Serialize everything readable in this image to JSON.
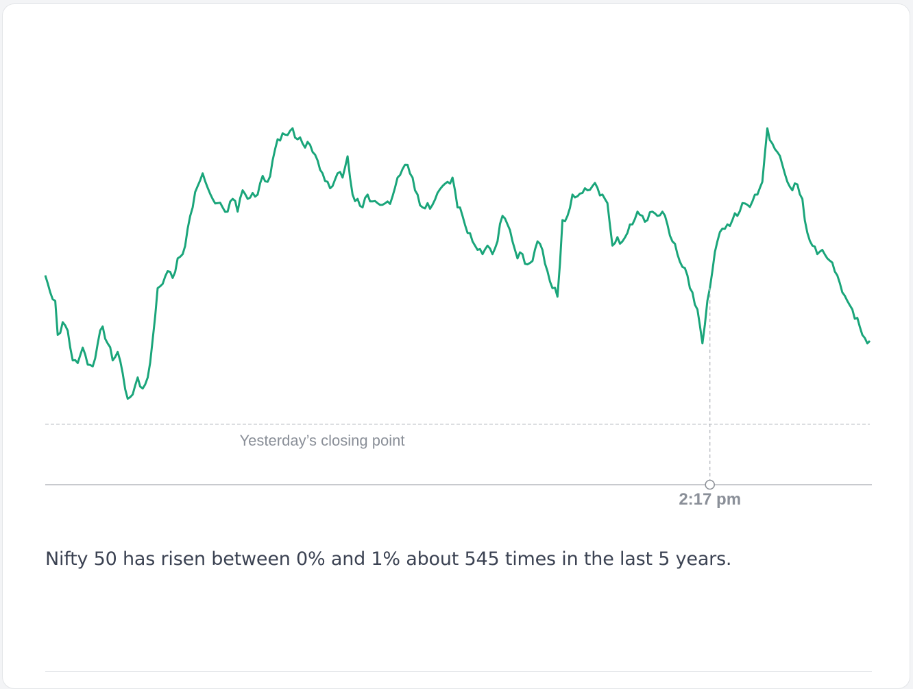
{
  "chart_data": {
    "type": "line",
    "title": "",
    "xlabel": "",
    "ylabel": "",
    "grid": false,
    "color": "#1aa57a",
    "reference_label": "Yesterday’s closing point",
    "reference_value": 0,
    "ylim": [
      -0.3,
      3.65
    ],
    "x_count": 331,
    "keypoints": [
      [
        0,
        1.75
      ],
      [
        2,
        1.55
      ],
      [
        4,
        1.45
      ],
      [
        5,
        1.05
      ],
      [
        7,
        1.2
      ],
      [
        9,
        1.1
      ],
      [
        11,
        0.75
      ],
      [
        13,
        0.72
      ],
      [
        15,
        0.9
      ],
      [
        17,
        0.7
      ],
      [
        19,
        0.68
      ],
      [
        21,
        0.95
      ],
      [
        23,
        1.15
      ],
      [
        25,
        0.95
      ],
      [
        27,
        0.75
      ],
      [
        29,
        0.85
      ],
      [
        31,
        0.6
      ],
      [
        33,
        0.3
      ],
      [
        35,
        0.35
      ],
      [
        37,
        0.55
      ],
      [
        39,
        0.42
      ],
      [
        41,
        0.55
      ],
      [
        43,
        1.0
      ],
      [
        45,
        1.6
      ],
      [
        47,
        1.65
      ],
      [
        49,
        1.8
      ],
      [
        51,
        1.72
      ],
      [
        53,
        1.95
      ],
      [
        55,
        2.0
      ],
      [
        57,
        2.3
      ],
      [
        59,
        2.55
      ],
      [
        61,
        2.8
      ],
      [
        63,
        2.95
      ],
      [
        65,
        2.78
      ],
      [
        67,
        2.65
      ],
      [
        69,
        2.6
      ],
      [
        71,
        2.55
      ],
      [
        73,
        2.5
      ],
      [
        75,
        2.65
      ],
      [
        77,
        2.5
      ],
      [
        79,
        2.75
      ],
      [
        81,
        2.65
      ],
      [
        83,
        2.72
      ],
      [
        85,
        2.7
      ],
      [
        87,
        2.92
      ],
      [
        89,
        2.85
      ],
      [
        91,
        3.1
      ],
      [
        93,
        3.35
      ],
      [
        95,
        3.42
      ],
      [
        97,
        3.4
      ],
      [
        99,
        3.48
      ],
      [
        101,
        3.35
      ],
      [
        103,
        3.3
      ],
      [
        105,
        3.32
      ],
      [
        107,
        3.2
      ],
      [
        109,
        3.1
      ],
      [
        111,
        2.95
      ],
      [
        113,
        2.85
      ],
      [
        115,
        2.8
      ],
      [
        117,
        2.95
      ],
      [
        119,
        2.9
      ],
      [
        121,
        3.15
      ],
      [
        123,
        2.7
      ],
      [
        125,
        2.65
      ],
      [
        127,
        2.55
      ],
      [
        129,
        2.7
      ],
      [
        131,
        2.62
      ],
      [
        133,
        2.6
      ],
      [
        135,
        2.58
      ],
      [
        137,
        2.62
      ],
      [
        139,
        2.68
      ],
      [
        141,
        2.9
      ],
      [
        143,
        3.0
      ],
      [
        145,
        3.05
      ],
      [
        147,
        2.9
      ],
      [
        149,
        2.7
      ],
      [
        151,
        2.55
      ],
      [
        153,
        2.6
      ],
      [
        155,
        2.58
      ],
      [
        157,
        2.72
      ],
      [
        159,
        2.8
      ],
      [
        161,
        2.85
      ],
      [
        163,
        2.9
      ],
      [
        165,
        2.55
      ],
      [
        167,
        2.45
      ],
      [
        169,
        2.25
      ],
      [
        171,
        2.15
      ],
      [
        173,
        2.05
      ],
      [
        175,
        2.0
      ],
      [
        177,
        2.1
      ],
      [
        179,
        2.0
      ],
      [
        181,
        2.15
      ],
      [
        183,
        2.45
      ],
      [
        185,
        2.35
      ],
      [
        187,
        2.15
      ],
      [
        189,
        1.95
      ],
      [
        191,
        2.0
      ],
      [
        193,
        1.88
      ],
      [
        195,
        1.92
      ],
      [
        197,
        2.15
      ],
      [
        199,
        2.05
      ],
      [
        201,
        1.8
      ],
      [
        203,
        1.6
      ],
      [
        205,
        1.5
      ],
      [
        207,
        2.4
      ],
      [
        209,
        2.45
      ],
      [
        211,
        2.7
      ],
      [
        213,
        2.68
      ],
      [
        215,
        2.72
      ],
      [
        217,
        2.75
      ],
      [
        219,
        2.8
      ],
      [
        221,
        2.78
      ],
      [
        223,
        2.7
      ],
      [
        225,
        2.6
      ],
      [
        227,
        2.1
      ],
      [
        229,
        2.2
      ],
      [
        231,
        2.15
      ],
      [
        233,
        2.25
      ],
      [
        235,
        2.35
      ],
      [
        237,
        2.5
      ],
      [
        239,
        2.45
      ],
      [
        241,
        2.4
      ],
      [
        243,
        2.5
      ],
      [
        245,
        2.45
      ],
      [
        247,
        2.5
      ],
      [
        249,
        2.35
      ],
      [
        251,
        2.15
      ],
      [
        253,
        2.0
      ],
      [
        255,
        1.85
      ],
      [
        257,
        1.75
      ],
      [
        259,
        1.55
      ],
      [
        261,
        1.35
      ],
      [
        263,
        0.95
      ],
      [
        265,
        1.45
      ],
      [
        267,
        1.8
      ],
      [
        269,
        2.15
      ],
      [
        271,
        2.3
      ],
      [
        273,
        2.35
      ],
      [
        275,
        2.4
      ],
      [
        277,
        2.45
      ],
      [
        279,
        2.6
      ],
      [
        281,
        2.58
      ],
      [
        283,
        2.62
      ],
      [
        285,
        2.7
      ],
      [
        287,
        2.85
      ],
      [
        289,
        3.48
      ],
      [
        291,
        3.3
      ],
      [
        293,
        3.2
      ],
      [
        295,
        3.05
      ],
      [
        297,
        2.85
      ],
      [
        299,
        2.75
      ],
      [
        301,
        2.82
      ],
      [
        303,
        2.65
      ],
      [
        305,
        2.25
      ],
      [
        307,
        2.1
      ],
      [
        309,
        2.0
      ],
      [
        311,
        2.05
      ],
      [
        313,
        1.95
      ],
      [
        315,
        1.9
      ],
      [
        317,
        1.75
      ],
      [
        319,
        1.55
      ],
      [
        321,
        1.45
      ],
      [
        323,
        1.35
      ],
      [
        325,
        1.25
      ],
      [
        327,
        1.05
      ],
      [
        329,
        0.95
      ],
      [
        330,
        0.98
      ]
    ],
    "highlight_index": 266,
    "highlight_label": "2:17 pm"
  },
  "caption": "Nifty 50 has risen between 0% and 1% about 545 times in the last 5 years."
}
